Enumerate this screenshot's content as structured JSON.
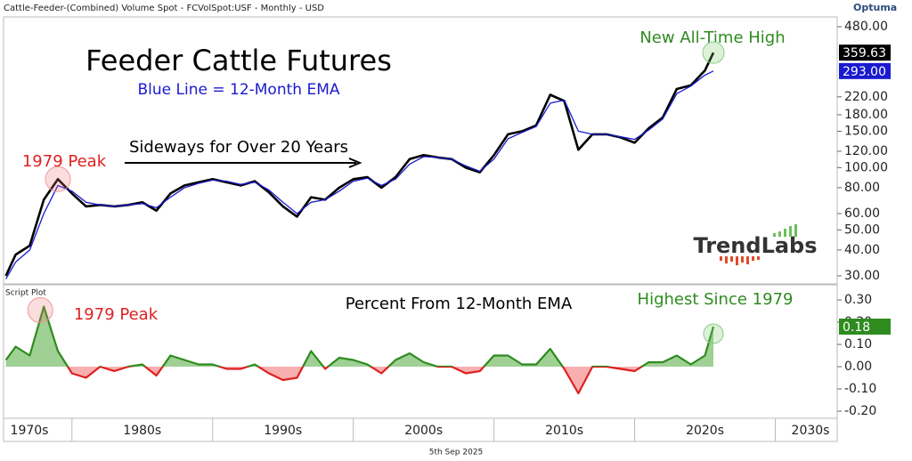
{
  "header": "Cattle-Feeder-(Combined) Volume Spot - FCVolSpot:USF - Monthly - USD",
  "brand": "Optuma",
  "logo": "TrendLabs",
  "date": "5th Sep 2025",
  "chart_data": [
    {
      "type": "line",
      "title": "Feeder Cattle Futures",
      "subtitle": "Blue Line = 12-Month EMA",
      "annotations": [
        "New All-Time High",
        "1979 Peak",
        "Sideways for Over 20 Years"
      ],
      "log_scale": true,
      "x": [
        1975.3,
        1976,
        1977,
        1978,
        1979,
        1980,
        1981,
        1982,
        1983,
        1984,
        1985,
        1986,
        1987,
        1988,
        1989,
        1990,
        1991,
        1992,
        1993,
        1994,
        1995,
        1996,
        1997,
        1998,
        1999,
        2000,
        2001,
        2002,
        2003,
        2004,
        2005,
        2006,
        2007,
        2008,
        2009,
        2010,
        2011,
        2012,
        2013,
        2014,
        2015,
        2016,
        2017,
        2018,
        2019,
        2020,
        2021,
        2022,
        2023,
        2024,
        2025,
        2025.6
      ],
      "xlim": [
        1975.2,
        2034.4
      ],
      "ylim": [
        27.7,
        530
      ],
      "yticks": [
        {
          "value": 30,
          "label": "30.00"
        },
        {
          "value": 40,
          "label": "40.00"
        },
        {
          "value": 50,
          "label": "50.00"
        },
        {
          "value": 60,
          "label": "60.00"
        },
        {
          "value": 80,
          "label": "80.00"
        },
        {
          "value": 100,
          "label": "100.00"
        },
        {
          "value": 120,
          "label": "120.00"
        },
        {
          "value": 150,
          "label": "150.00"
        },
        {
          "value": 180,
          "label": "180.00"
        },
        {
          "value": 220,
          "label": "220.00"
        },
        {
          "value": 480,
          "label": "480.00"
        }
      ],
      "series": [
        {
          "color": "#000000",
          "values": [
            30,
            38,
            42,
            70,
            88,
            75,
            65,
            66,
            65,
            66,
            68,
            62,
            75,
            82,
            85,
            88,
            85,
            82,
            86,
            76,
            65,
            58,
            72,
            70,
            80,
            88,
            90,
            80,
            90,
            110,
            115,
            112,
            110,
            100,
            95,
            115,
            145,
            150,
            160,
            225,
            210,
            122,
            145,
            145,
            140,
            132,
            155,
            175,
            240,
            250,
            295,
            359.63
          ],
          "value_labels": [
            null,
            null,
            null,
            null,
            null,
            null,
            null,
            null,
            null,
            null,
            null,
            null,
            null,
            null,
            null,
            null,
            null,
            null,
            null,
            null,
            null,
            null,
            null,
            null,
            null,
            null,
            null,
            null,
            null,
            null,
            null,
            null,
            null,
            null,
            null,
            null,
            null,
            null,
            null,
            null,
            null,
            null,
            null,
            null,
            null,
            null,
            null,
            null,
            null,
            null,
            null,
            "359.63"
          ]
        },
        {
          "color": "#1a1ad0",
          "values": [
            29,
            35,
            40,
            60,
            82,
            77,
            68,
            66,
            65,
            66,
            67,
            64,
            72,
            80,
            84,
            87,
            86,
            83,
            85,
            78,
            68,
            60,
            68,
            70,
            77,
            86,
            89,
            82,
            88,
            104,
            113,
            112,
            110,
            102,
            96,
            110,
            138,
            148,
            158,
            205,
            212,
            150,
            145,
            145,
            141,
            137,
            152,
            172,
            228,
            248,
            280,
            293.0
          ],
          "value_labels": [
            null,
            null,
            null,
            null,
            null,
            null,
            null,
            null,
            null,
            null,
            null,
            null,
            null,
            null,
            null,
            null,
            null,
            null,
            null,
            null,
            null,
            null,
            null,
            null,
            null,
            null,
            null,
            null,
            null,
            null,
            null,
            null,
            null,
            null,
            null,
            null,
            null,
            null,
            null,
            null,
            null,
            null,
            null,
            null,
            null,
            null,
            null,
            null,
            null,
            null,
            null,
            "293.00"
          ]
        }
      ]
    },
    {
      "type": "area",
      "panel_label": "Script Plot",
      "title": "Percent From 12-Month EMA",
      "annotations": [
        "1979 Peak",
        "Highest Since 1979"
      ],
      "x": [
        1975.3,
        1976,
        1977,
        1978,
        1979,
        1980,
        1981,
        1982,
        1983,
        1984,
        1985,
        1986,
        1987,
        1988,
        1989,
        1990,
        1991,
        1992,
        1993,
        1994,
        1995,
        1996,
        1997,
        1998,
        1999,
        2000,
        2001,
        2002,
        2003,
        2004,
        2005,
        2006,
        2007,
        2008,
        2009,
        2010,
        2011,
        2012,
        2013,
        2014,
        2015,
        2016,
        2017,
        2018,
        2019,
        2020,
        2021,
        2022,
        2023,
        2024,
        2025,
        2025.6
      ],
      "xlim": [
        1975.2,
        2034.4
      ],
      "ylim": [
        -0.232,
        0.36
      ],
      "yticks": [
        {
          "value": -0.2,
          "label": "-0.20"
        },
        {
          "value": -0.1,
          "label": "-0.10"
        },
        {
          "value": 0,
          "label": "0.00"
        },
        {
          "value": 0.1,
          "label": "0.10"
        },
        {
          "value": 0.2,
          "label": "0.20"
        },
        {
          "value": 0.3,
          "label": "0.30"
        }
      ],
      "xticks": [
        {
          "value": 1970,
          "label": "1970s"
        },
        {
          "value": 1980,
          "label": "1980s"
        },
        {
          "value": 1990,
          "label": "1990s"
        },
        {
          "value": 2000,
          "label": "2000s"
        },
        {
          "value": 2010,
          "label": "2010s"
        },
        {
          "value": 2020,
          "label": "2020s"
        },
        {
          "value": 2030,
          "label": "2030s"
        }
      ],
      "positive_color": "#2e8b1e",
      "negative_color": "#e02020",
      "series": [
        {
          "values": [
            0.03,
            0.09,
            0.05,
            0.27,
            0.07,
            -0.03,
            -0.05,
            0.0,
            -0.02,
            0.0,
            0.01,
            -0.04,
            0.05,
            0.03,
            0.01,
            0.01,
            -0.01,
            -0.01,
            0.01,
            -0.03,
            -0.06,
            -0.05,
            0.07,
            -0.01,
            0.04,
            0.03,
            0.01,
            -0.03,
            0.03,
            0.06,
            0.02,
            0.0,
            0.0,
            -0.03,
            -0.02,
            0.05,
            0.05,
            0.01,
            0.01,
            0.08,
            -0.01,
            -0.12,
            0.0,
            0.0,
            -0.01,
            -0.02,
            0.02,
            0.02,
            0.05,
            0.01,
            0.05,
            0.18
          ],
          "value_labels": [
            null,
            null,
            null,
            null,
            null,
            null,
            null,
            null,
            null,
            null,
            null,
            null,
            null,
            null,
            null,
            null,
            null,
            null,
            null,
            null,
            null,
            null,
            null,
            null,
            null,
            null,
            null,
            null,
            null,
            null,
            null,
            null,
            null,
            null,
            null,
            null,
            null,
            null,
            null,
            null,
            null,
            null,
            null,
            null,
            null,
            null,
            null,
            null,
            null,
            null,
            null,
            "0.18"
          ]
        }
      ]
    }
  ]
}
